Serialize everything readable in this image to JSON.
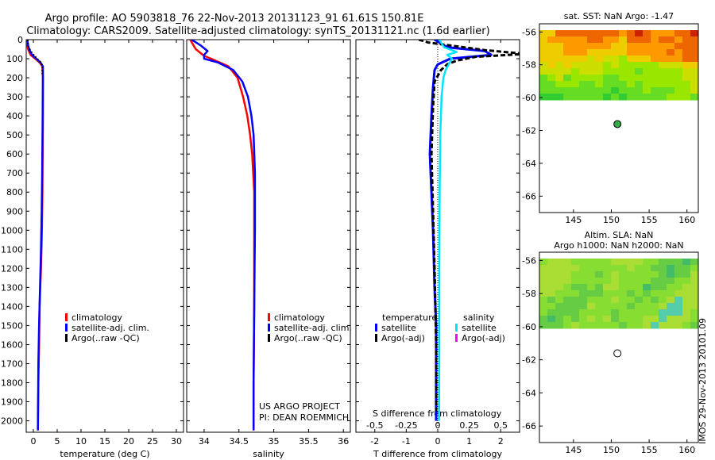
{
  "title_line1": "Argo profile: AO 5903818_76 22-Nov-2013 20131123_91 61.61S 150.81E",
  "title_line2": "Climatology: CARS2009. Satellite-adjusted climatology: synTS_20131121.nc (1.6d earlier)",
  "side_label": "IMOS 29-Nov-2013 20101.09",
  "project_line1": "US ARGO PROJECT",
  "project_line2": "PI: DEAN ROEMMICH",
  "colors": {
    "climatology": "#ff0000",
    "satellite": "#0000ff",
    "argo": "#000000",
    "sal_satellite": "#00e5ff",
    "sal_argo": "#ff00ff"
  },
  "chart_data": [
    {
      "type": "line",
      "xlabel": "temperature (deg C)",
      "ylabel": "",
      "xlim": [
        -1.5,
        31.5
      ],
      "ylim": [
        2060,
        0
      ],
      "xticks": [
        0,
        5,
        10,
        15,
        20,
        25,
        30
      ],
      "yticks": [
        0,
        100,
        200,
        300,
        400,
        500,
        600,
        700,
        800,
        900,
        1000,
        1100,
        1200,
        1300,
        1400,
        1500,
        1600,
        1700,
        1800,
        1900,
        2000
      ],
      "legend": [
        "climatology",
        "satellite-adj. clim.",
        "Argo(..raw -QC)"
      ],
      "series": [
        {
          "name": "climatology",
          "x": [
            -1.4,
            -1.3,
            -1.1,
            -0.6,
            0.4,
            1.3,
            1.9,
            2.0,
            2.0,
            1.95,
            1.9,
            1.8,
            1.6,
            1.3,
            1.2,
            1.05,
            0.95
          ],
          "y": [
            0,
            20,
            50,
            80,
            100,
            120,
            140,
            200,
            400,
            600,
            800,
            1000,
            1200,
            1400,
            1600,
            1800,
            2050
          ]
        },
        {
          "name": "satellite-adj. clim.",
          "x": [
            -1.3,
            -1.1,
            -0.8,
            -0.3,
            0.6,
            1.5,
            2.0,
            2.0,
            1.95,
            1.85,
            1.75,
            1.6,
            1.4,
            1.2,
            1.05,
            0.95
          ],
          "y": [
            0,
            30,
            55,
            80,
            100,
            120,
            140,
            200,
            400,
            700,
            900,
            1100,
            1300,
            1500,
            1700,
            2050
          ]
        },
        {
          "name": "Argo(..raw -QC)",
          "x": [
            -1.2,
            -1.0,
            -0.3,
            0.8,
            1.6,
            1.9,
            1.85
          ],
          "y": [
            0,
            40,
            70,
            100,
            120,
            140,
            180
          ]
        }
      ]
    },
    {
      "type": "line",
      "xlabel": "salinity",
      "ylabel": "",
      "xlim": [
        33.75,
        36.1
      ],
      "ylim": [
        2060,
        0
      ],
      "xticks": [
        34,
        34.5,
        35,
        35.5,
        36
      ],
      "legend": [
        "climatology",
        "satellite-adj. clim.",
        "Argo(..raw -QC)"
      ],
      "series": [
        {
          "name": "climatology",
          "x": [
            33.8,
            33.88,
            34.0,
            34.1,
            34.35,
            34.48,
            34.56,
            34.62,
            34.66,
            34.69,
            34.72,
            34.72,
            34.72,
            34.71,
            34.71
          ],
          "y": [
            0,
            50,
            85,
            100,
            140,
            200,
            300,
            400,
            500,
            600,
            800,
            1000,
            1400,
            1800,
            2050
          ]
        },
        {
          "name": "satellite-adj. clim.",
          "x": [
            33.82,
            33.95,
            34.05,
            34.0,
            34.0,
            34.2,
            34.42,
            34.55,
            34.63,
            34.68,
            34.71,
            34.73,
            34.73,
            34.72,
            34.71,
            34.71
          ],
          "y": [
            0,
            30,
            60,
            80,
            100,
            120,
            160,
            220,
            300,
            400,
            500,
            700,
            1000,
            1400,
            1800,
            2050
          ]
        },
        {
          "name": "Argo(..raw -QC)",
          "x": [],
          "y": []
        }
      ]
    },
    {
      "type": "line",
      "xlabel": "T difference from climatology",
      "ylabel": "",
      "xlim": [
        -2.6,
        2.6
      ],
      "ylim": [
        2060,
        0
      ],
      "xticks": [
        -2,
        -1,
        0,
        1,
        2
      ],
      "top_axis_label": "S difference from climatology",
      "top_ticks": [
        -0.5,
        -0.25,
        0,
        0.25,
        0.5
      ],
      "legend_titles": [
        "temperature",
        "salinity"
      ],
      "legend": [
        "satellite",
        "Argo(-adj)",
        "satellite",
        "Argo(-adj)"
      ],
      "series": [
        {
          "name": "temperature satellite",
          "x": [
            -0.1,
            0.3,
            1.5,
            1.7,
            0.4,
            0.0,
            -0.1,
            -0.15,
            -0.2,
            -0.25,
            -0.2,
            -0.15,
            -0.1,
            -0.05,
            -0.05,
            -0.05,
            -0.05
          ],
          "y": [
            0,
            40,
            60,
            80,
            100,
            130,
            160,
            250,
            400,
            600,
            800,
            1000,
            1300,
            1500,
            1700,
            1900,
            2000
          ]
        },
        {
          "name": "temperature Argo(-adj)",
          "x": [
            -0.6,
            -0.3,
            1.5,
            2.8,
            1.2,
            0.6,
            0.3,
            0.1,
            -0.1,
            -0.15,
            -0.2,
            -0.15,
            -0.1,
            -0.05,
            -0.05
          ],
          "y": [
            0,
            15,
            55,
            75,
            90,
            110,
            130,
            160,
            220,
            350,
            600,
            900,
            1200,
            1600,
            1950
          ]
        },
        {
          "name": "salinity satellite",
          "x": [
            0.05,
            0.2,
            0.6,
            0.3,
            0.45,
            0.35,
            0.25,
            0.18,
            0.12,
            0.08,
            0.06,
            0.05,
            0.05,
            0.04
          ],
          "y": [
            0,
            40,
            65,
            80,
            100,
            130,
            160,
            200,
            300,
            500,
            800,
            1200,
            1600,
            2000
          ]
        },
        {
          "name": "salinity Argo(-adj)",
          "x": [],
          "y": []
        }
      ]
    },
    {
      "type": "heatmap",
      "title": "sat. SST: NaN Argo: -1.47",
      "xlim": [
        140.5,
        161.5
      ],
      "ylim": [
        -67,
        -55.5
      ],
      "xticks": [
        145,
        150,
        155,
        160
      ],
      "yticks": [
        -56,
        -58,
        -60,
        -62,
        -64,
        -66
      ],
      "marker": {
        "lon": 150.81,
        "lat": -61.61
      }
    },
    {
      "type": "heatmap",
      "title": "Altim. SLA: NaN",
      "subtitle": "Argo h1000: NaN h2000: NaN",
      "xlim": [
        140.5,
        161.5
      ],
      "ylim": [
        -67,
        -55.5
      ],
      "xticks": [
        145,
        150,
        155,
        160
      ],
      "yticks": [
        -56,
        -58,
        -60,
        -62,
        -64,
        -66
      ],
      "marker": {
        "lon": 150.81,
        "lat": -61.61
      }
    }
  ]
}
